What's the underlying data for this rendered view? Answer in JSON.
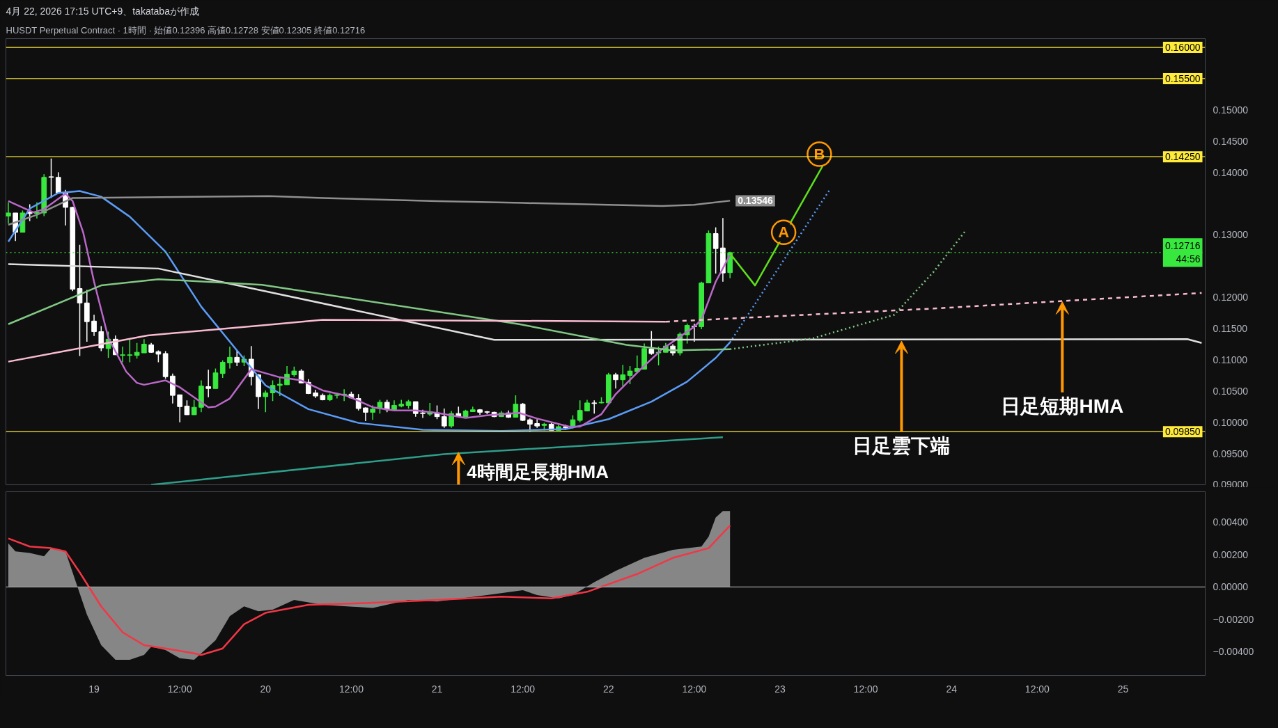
{
  "chart_data": [
    {
      "type": "candlestick",
      "title": "4月 22, 2026 17:15 UTC+9、takatabaが作成",
      "subtitle": "HUSDT Perpetual Contract · 1時間 · 始値0.12396 高値0.12728 安値0.12305 終値0.12716",
      "x": [
        "2026-04-18T12:00",
        "2026-04-18T13:00",
        "2026-04-18T14:00",
        "2026-04-18T15:00",
        "2026-04-18T16:00",
        "2026-04-18T17:00",
        "2026-04-18T18:00",
        "2026-04-18T19:00",
        "2026-04-18T20:00",
        "2026-04-18T21:00",
        "2026-04-18T22:00",
        "2026-04-18T23:00",
        "2026-04-19T00:00",
        "2026-04-19T01:00",
        "2026-04-19T02:00",
        "2026-04-19T03:00",
        "2026-04-19T04:00",
        "2026-04-19T05:00",
        "2026-04-19T06:00",
        "2026-04-19T07:00",
        "2026-04-19T08:00",
        "2026-04-19T09:00",
        "2026-04-19T10:00",
        "2026-04-19T11:00",
        "2026-04-19T12:00",
        "2026-04-19T13:00",
        "2026-04-19T14:00",
        "2026-04-19T15:00",
        "2026-04-19T16:00",
        "2026-04-19T17:00",
        "2026-04-19T18:00",
        "2026-04-19T19:00",
        "2026-04-19T20:00",
        "2026-04-19T21:00",
        "2026-04-19T22:00",
        "2026-04-19T23:00",
        "2026-04-20T00:00",
        "2026-04-20T01:00",
        "2026-04-20T02:00",
        "2026-04-20T03:00",
        "2026-04-20T04:00",
        "2026-04-20T05:00",
        "2026-04-20T06:00",
        "2026-04-20T07:00",
        "2026-04-20T08:00",
        "2026-04-20T09:00",
        "2026-04-20T10:00",
        "2026-04-20T11:00",
        "2026-04-20T12:00",
        "2026-04-20T13:00",
        "2026-04-20T14:00",
        "2026-04-20T15:00",
        "2026-04-20T16:00",
        "2026-04-20T17:00",
        "2026-04-20T18:00",
        "2026-04-20T19:00",
        "2026-04-20T20:00",
        "2026-04-20T21:00",
        "2026-04-20T22:00",
        "2026-04-20T23:00",
        "2026-04-21T00:00",
        "2026-04-21T01:00",
        "2026-04-21T02:00",
        "2026-04-21T03:00",
        "2026-04-21T04:00",
        "2026-04-21T05:00",
        "2026-04-21T06:00",
        "2026-04-21T07:00",
        "2026-04-21T08:00",
        "2026-04-21T09:00",
        "2026-04-21T10:00",
        "2026-04-21T11:00",
        "2026-04-21T12:00",
        "2026-04-21T13:00",
        "2026-04-21T14:00",
        "2026-04-21T15:00",
        "2026-04-21T16:00",
        "2026-04-21T17:00",
        "2026-04-21T18:00",
        "2026-04-21T19:00",
        "2026-04-21T20:00",
        "2026-04-21T21:00",
        "2026-04-21T22:00",
        "2026-04-21T23:00",
        "2026-04-22T00:00",
        "2026-04-22T01:00",
        "2026-04-22T02:00",
        "2026-04-22T03:00",
        "2026-04-22T04:00",
        "2026-04-22T05:00",
        "2026-04-22T06:00",
        "2026-04-22T07:00",
        "2026-04-22T08:00",
        "2026-04-22T09:00",
        "2026-04-22T10:00",
        "2026-04-22T11:00",
        "2026-04-22T12:00",
        "2026-04-22T13:00",
        "2026-04-22T14:00",
        "2026-04-22T15:00",
        "2026-04-22T16:00",
        "2026-04-22T17:00"
      ],
      "ohlc": [
        [
          0.133,
          0.1352,
          0.1318,
          0.1335
        ],
        [
          0.1335,
          0.1335,
          0.129,
          0.1304
        ],
        [
          0.1304,
          0.1339,
          0.1304,
          0.1335
        ],
        [
          0.1336,
          0.1349,
          0.1322,
          0.1334
        ],
        [
          0.1334,
          0.1352,
          0.1326,
          0.1336
        ],
        [
          0.1335,
          0.1397,
          0.133,
          0.1392
        ],
        [
          0.1393,
          0.1422,
          0.1359,
          0.1392
        ],
        [
          0.1392,
          0.14,
          0.1367,
          0.1367
        ],
        [
          0.1367,
          0.1372,
          0.1315,
          0.1344
        ],
        [
          0.1344,
          0.1345,
          0.121,
          0.1213
        ],
        [
          0.1214,
          0.1284,
          0.1106,
          0.1191
        ],
        [
          0.1191,
          0.1212,
          0.1129,
          0.1161
        ],
        [
          0.1162,
          0.1172,
          0.1138,
          0.1145
        ],
        [
          0.1145,
          0.1154,
          0.1114,
          0.1119
        ],
        [
          0.1118,
          0.1145,
          0.1103,
          0.1133
        ],
        [
          0.1133,
          0.1139,
          0.1108,
          0.1108
        ],
        [
          0.1107,
          0.1121,
          0.1096,
          0.1108
        ],
        [
          0.1107,
          0.1133,
          0.1096,
          0.1108
        ],
        [
          0.1107,
          0.1127,
          0.1102,
          0.1112
        ],
        [
          0.1111,
          0.1133,
          0.1111,
          0.1125
        ],
        [
          0.1124,
          0.1127,
          0.1111,
          0.1112
        ],
        [
          0.1113,
          0.1115,
          0.1096,
          0.1109
        ],
        [
          0.111,
          0.1114,
          0.107,
          0.1073
        ],
        [
          0.1074,
          0.1078,
          0.103,
          0.1043
        ],
        [
          0.1044,
          0.1044,
          0.1,
          0.1025
        ],
        [
          0.1026,
          0.1035,
          0.1012,
          0.1012
        ],
        [
          0.1012,
          0.1036,
          0.1012,
          0.1024
        ],
        [
          0.1024,
          0.1067,
          0.1016,
          0.1058
        ],
        [
          0.1057,
          0.1084,
          0.104,
          0.1054
        ],
        [
          0.1054,
          0.1086,
          0.1054,
          0.1079
        ],
        [
          0.1078,
          0.1099,
          0.1071,
          0.1096
        ],
        [
          0.1095,
          0.1121,
          0.1086,
          0.1104
        ],
        [
          0.1104,
          0.1115,
          0.109,
          0.1096
        ],
        [
          0.1096,
          0.1107,
          0.109,
          0.1101
        ],
        [
          0.1101,
          0.1122,
          0.1059,
          0.1073
        ],
        [
          0.1076,
          0.1077,
          0.1021,
          0.1041
        ],
        [
          0.1041,
          0.1051,
          0.1016,
          0.1047
        ],
        [
          0.1047,
          0.1067,
          0.1034,
          0.1059
        ],
        [
          0.1059,
          0.1072,
          0.1042,
          0.1061
        ],
        [
          0.106,
          0.109,
          0.106,
          0.1077
        ],
        [
          0.1076,
          0.1089,
          0.1073,
          0.1082
        ],
        [
          0.1082,
          0.1085,
          0.1063,
          0.1063
        ],
        [
          0.1064,
          0.1069,
          0.1045,
          0.1046
        ],
        [
          0.1047,
          0.1052,
          0.1039,
          0.1042
        ],
        [
          0.1043,
          0.1046,
          0.1035,
          0.1036
        ],
        [
          0.1036,
          0.1046,
          0.1034,
          0.1043
        ],
        [
          0.1043,
          0.1047,
          0.1038,
          0.1044
        ],
        [
          0.1044,
          0.1053,
          0.1034,
          0.1045
        ],
        [
          0.1045,
          0.1049,
          0.1038,
          0.1039
        ],
        [
          0.1038,
          0.1045,
          0.1019,
          0.1022
        ],
        [
          0.1023,
          0.1024,
          0.1002,
          0.1016
        ],
        [
          0.1016,
          0.1027,
          0.1004,
          0.1021
        ],
        [
          0.1022,
          0.1036,
          0.1014,
          0.1032
        ],
        [
          0.1032,
          0.1036,
          0.1016,
          0.102
        ],
        [
          0.102,
          0.1035,
          0.102,
          0.1027
        ],
        [
          0.1026,
          0.1036,
          0.1024,
          0.1029
        ],
        [
          0.1027,
          0.1036,
          0.1022,
          0.1033
        ],
        [
          0.1033,
          0.1033,
          0.1009,
          0.1014
        ],
        [
          0.1015,
          0.102,
          0.1007,
          0.1014
        ],
        [
          0.1013,
          0.1031,
          0.101,
          0.1017
        ],
        [
          0.1015,
          0.1027,
          0.1005,
          0.1009
        ],
        [
          0.1009,
          0.1022,
          0.0991,
          0.0994
        ],
        [
          0.0994,
          0.1018,
          0.0991,
          0.1014
        ],
        [
          0.1014,
          0.1025,
          0.1009,
          0.1009
        ],
        [
          0.1009,
          0.102,
          0.1009,
          0.1018
        ],
        [
          0.1017,
          0.1025,
          0.1017,
          0.102
        ],
        [
          0.102,
          0.1021,
          0.1012,
          0.1016
        ],
        [
          0.1017,
          0.1018,
          0.1013,
          0.1016
        ],
        [
          0.1016,
          0.1017,
          0.1008,
          0.1009
        ],
        [
          0.1009,
          0.1018,
          0.1009,
          0.1015
        ],
        [
          0.1015,
          0.1019,
          0.1007,
          0.1008
        ],
        [
          0.1008,
          0.1043,
          0.1008,
          0.1029
        ],
        [
          0.1029,
          0.1031,
          0.1002,
          0.1003
        ],
        [
          0.1004,
          0.1006,
          0.0985,
          0.0997
        ],
        [
          0.0998,
          0.1005,
          0.0991,
          0.0994
        ],
        [
          0.0995,
          0.0999,
          0.0987,
          0.0997
        ],
        [
          0.0997,
          0.0999,
          0.0987,
          0.0987
        ],
        [
          0.0987,
          0.0996,
          0.0987,
          0.0993
        ],
        [
          0.0993,
          0.0996,
          0.0988,
          0.0991
        ],
        [
          0.0993,
          0.1011,
          0.099,
          0.1004
        ],
        [
          0.1003,
          0.1035,
          0.1,
          0.1019
        ],
        [
          0.1018,
          0.1036,
          0.1018,
          0.1031
        ],
        [
          0.1031,
          0.1035,
          0.1014,
          0.103
        ],
        [
          0.1031,
          0.104,
          0.103,
          0.1032
        ],
        [
          0.1031,
          0.1079,
          0.1031,
          0.1076
        ],
        [
          0.1076,
          0.1079,
          0.1054,
          0.1068
        ],
        [
          0.1068,
          0.1092,
          0.1058,
          0.1076
        ],
        [
          0.1075,
          0.109,
          0.1061,
          0.1082
        ],
        [
          0.1081,
          0.1107,
          0.1081,
          0.1086
        ],
        [
          0.1085,
          0.1126,
          0.1085,
          0.1118
        ],
        [
          0.1117,
          0.1146,
          0.1108,
          0.111
        ],
        [
          0.1111,
          0.1121,
          0.1091,
          0.1112
        ],
        [
          0.1112,
          0.1127,
          0.1112,
          0.1122
        ],
        [
          0.1122,
          0.1125,
          0.1107,
          0.1111
        ],
        [
          0.1111,
          0.1144,
          0.1107,
          0.1141
        ],
        [
          0.114,
          0.1158,
          0.1126,
          0.1155
        ],
        [
          0.1154,
          0.1158,
          0.1129,
          0.1153
        ],
        [
          0.1153,
          0.1225,
          0.1149,
          0.1223
        ],
        [
          0.1223,
          0.1307,
          0.1223,
          0.1302
        ],
        [
          0.1302,
          0.1312,
          0.1238,
          0.1278
        ],
        [
          0.1279,
          0.1327,
          0.1225,
          0.1239
        ],
        [
          0.12396,
          0.12728,
          0.12305,
          0.12716
        ]
      ],
      "colors": [
        "#39e83f",
        "#ffffff",
        "#39e83f",
        "#ffffff",
        "#39e83f",
        "#39e83f",
        "#ffffff",
        "#ffffff",
        "#ffffff",
        "#ffffff",
        "#ffffff",
        "#ffffff",
        "#ffffff",
        "#ffffff",
        "#39e83f",
        "#ffffff",
        "#39e83f",
        "#39e83f",
        "#39e83f",
        "#39e83f",
        "#ffffff",
        "#ffffff",
        "#ffffff",
        "#ffffff",
        "#ffffff",
        "#ffffff",
        "#39e83f",
        "#39e83f",
        "#ffffff",
        "#39e83f",
        "#39e83f",
        "#39e83f",
        "#ffffff",
        "#39e83f",
        "#ffffff",
        "#ffffff",
        "#39e83f",
        "#39e83f",
        "#39e83f",
        "#39e83f",
        "#39e83f",
        "#ffffff",
        "#ffffff",
        "#ffffff",
        "#ffffff",
        "#39e83f",
        "#39e83f",
        "#39e83f",
        "#ffffff",
        "#ffffff",
        "#ffffff",
        "#39e83f",
        "#39e83f",
        "#ffffff",
        "#39e83f",
        "#39e83f",
        "#39e83f",
        "#ffffff",
        "#ffffff",
        "#39e83f",
        "#ffffff",
        "#ffffff",
        "#39e83f",
        "#ffffff",
        "#39e83f",
        "#39e83f",
        "#ffffff",
        "#ffffff",
        "#ffffff",
        "#39e83f",
        "#ffffff",
        "#39e83f",
        "#ffffff",
        "#ffffff",
        "#ffffff",
        "#39e83f",
        "#ffffff",
        "#39e83f",
        "#ffffff",
        "#39e83f",
        "#39e83f",
        "#39e83f",
        "#ffffff",
        "#39e83f",
        "#39e83f",
        "#ffffff",
        "#39e83f",
        "#39e83f",
        "#39e83f",
        "#39e83f",
        "#ffffff",
        "#39e83f",
        "#39e83f",
        "#ffffff",
        "#39e83f",
        "#39e83f",
        "#ffffff",
        "#39e83f",
        "#39e83f",
        "#ffffff",
        "#ffffff",
        "#39e83f"
      ],
      "series": [
        {
          "type": "line",
          "color": "#5b9cf6",
          "x": [
            "2026-04-18T12:00",
            "2026-04-18T15:00",
            "2026-04-18T19:00",
            "2026-04-18T22:00",
            "2026-04-19T01:00",
            "2026-04-19T05:00",
            "2026-04-19T10:00",
            "2026-04-19T15:00",
            "2026-04-19T20:00",
            "2026-04-20T00:00",
            "2026-04-20T06:00",
            "2026-04-20T13:00",
            "2026-04-20T22:00",
            "2026-04-21T09:00",
            "2026-04-21T18:00",
            "2026-04-22T00:00",
            "2026-04-22T06:00",
            "2026-04-22T11:00",
            "2026-04-22T15:00",
            "2026-04-22T17:00"
          ],
          "values": [
            0.1289,
            0.1342,
            0.1367,
            0.137,
            0.1361,
            0.1329,
            0.1273,
            0.1185,
            0.1115,
            0.1059,
            0.1021,
            0.0999,
            0.0988,
            0.0986,
            0.0989,
            0.1005,
            0.1033,
            0.1065,
            0.1103,
            0.1128
          ]
        },
        {
          "type": "line",
          "color": "#5b9cf6",
          "line_style": "dotted",
          "x": [
            "2026-04-22T17:00",
            "2026-04-23T07:00"
          ],
          "values": [
            0.1128,
            0.1373
          ]
        },
        {
          "type": "line",
          "color": "#ba68c8",
          "x": [
            "2026-04-18T12:00",
            "2026-04-18T15:30",
            "2026-04-18T17:00",
            "2026-04-18T20:00",
            "2026-04-18T21:00",
            "2026-04-18T22:30",
            "2026-04-19T00:00",
            "2026-04-19T02:00",
            "2026-04-19T04:30",
            "2026-04-19T06:00",
            "2026-04-19T07:00",
            "2026-04-19T10:00",
            "2026-04-19T12:00",
            "2026-04-19T16:00",
            "2026-04-19T17:00",
            "2026-04-19T19:00",
            "2026-04-19T22:00",
            "2026-04-20T02:00",
            "2026-04-20T05:00",
            "2026-04-20T08:00",
            "2026-04-20T11:30",
            "2026-04-20T15:00",
            "2026-04-20T18:00",
            "2026-04-20T21:00",
            "2026-04-21T00:00",
            "2026-04-21T04:00",
            "2026-04-21T07:00",
            "2026-04-21T11:30",
            "2026-04-21T14:00",
            "2026-04-21T18:30",
            "2026-04-21T20:00",
            "2026-04-21T23:00",
            "2026-04-22T01:00",
            "2026-04-22T04:30",
            "2026-04-22T07:30",
            "2026-04-22T12:00",
            "2026-04-22T13:00",
            "2026-04-22T15:00",
            "2026-04-22T17:00"
          ],
          "values": [
            0.1354,
            0.1336,
            0.1341,
            0.1366,
            0.1354,
            0.1303,
            0.1225,
            0.1135,
            0.1081,
            0.1063,
            0.106,
            0.1067,
            0.1056,
            0.1024,
            0.1025,
            0.1038,
            0.1085,
            0.1072,
            0.1067,
            0.1051,
            0.1042,
            0.1024,
            0.1019,
            0.1019,
            0.1015,
            0.1007,
            0.1011,
            0.1015,
            0.1006,
            0.0993,
            0.0993,
            0.1013,
            0.1045,
            0.1085,
            0.1117,
            0.1153,
            0.1164,
            0.1225,
            0.1268
          ]
        },
        {
          "type": "line",
          "color": "#8f8f8f",
          "x": [
            "2026-04-18T12:00",
            "2026-04-18T16:00",
            "2026-04-18T21:00",
            "2026-04-20T00:30",
            "2026-04-20T08:00",
            "2026-04-21T00:00",
            "2026-04-21T12:00",
            "2026-04-22T07:30",
            "2026-04-22T12:00",
            "2026-04-22T17:00"
          ],
          "values": [
            0.1316,
            0.1332,
            0.1359,
            0.1362,
            0.1359,
            0.1354,
            0.1351,
            0.1346,
            0.1348,
            0.13546
          ],
          "value_labels": [
            null,
            null,
            null,
            null,
            null,
            null,
            null,
            null,
            null,
            "0.13546"
          ]
        },
        {
          "type": "line",
          "color": "#e0e0e0",
          "x": [
            "2026-04-18T12:00",
            "2026-04-19T09:00",
            "2026-04-21T08:00",
            "2026-04-25T09:00",
            "2026-04-25T11:00"
          ],
          "values": [
            0.1253,
            0.1246,
            0.1132,
            0.1133,
            0.1127
          ]
        },
        {
          "type": "line",
          "color": "#81c784",
          "x": [
            "2026-04-18T12:00",
            "2026-04-19T01:00",
            "2026-04-19T09:00",
            "2026-04-19T23:30",
            "2026-04-21T11:30",
            "2026-04-22T02:30",
            "2026-04-22T09:00",
            "2026-04-22T17:00"
          ],
          "values": [
            0.1157,
            0.1219,
            0.1229,
            0.122,
            0.1157,
            0.1124,
            0.1115,
            0.1117
          ]
        },
        {
          "type": "line",
          "color": "#81c784",
          "line_style": "dotted",
          "x": [
            "2026-04-22T17:00",
            "2026-04-23T04:30",
            "2026-04-23T16:00",
            "2026-04-23T21:30",
            "2026-04-24T02:00"
          ],
          "values": [
            0.1117,
            0.1134,
            0.1172,
            0.1241,
            0.1307
          ]
        },
        {
          "type": "line",
          "color": "#f8bbd0",
          "x": [
            "2026-04-18T12:00",
            "2026-04-19T07:30",
            "2026-04-19T23:30",
            "2026-04-20T08:00",
            "2026-04-22T08:00"
          ],
          "values": [
            0.1097,
            0.1139,
            0.1155,
            0.1164,
            0.1161
          ]
        },
        {
          "type": "line",
          "color": "#f8bbd0",
          "line_style": "dashed",
          "x": [
            "2026-04-22T08:00",
            "2026-04-23T21:30",
            "2026-04-25T11:00"
          ],
          "values": [
            0.1161,
            0.1182,
            0.1207
          ]
        },
        {
          "type": "line",
          "color": "#2e9e8a",
          "x": [
            "2026-04-19T08:00",
            "2026-04-21T01:00",
            "2026-04-22T16:00"
          ],
          "values": [
            0.09,
            0.0949,
            0.0976
          ]
        },
        {
          "type": "line",
          "color": "#5ee01a",
          "x": [
            "2026-04-22T17:00",
            "2026-04-22T20:30",
            "2026-04-23T06:00"
          ],
          "values": [
            0.127,
            0.1219,
            0.1411
          ]
        },
        {
          "type": "scatter",
          "color": "#ff9800",
          "marker": "circle",
          "x": [
            "2026-04-23T00:30",
            "2026-04-23T05:30"
          ],
          "values": [
            0.1304,
            0.1429
          ],
          "value_labels": [
            "A",
            "B"
          ]
        }
      ],
      "xlim": [
        "2026-04-18T11:40",
        "2026-04-25T11:30"
      ],
      "ylim": [
        0.09,
        0.1614
      ],
      "yticks": [
        {
          "value": 0.09,
          "label": "0.09000"
        },
        {
          "value": 0.095,
          "label": "0.09500"
        },
        {
          "value": 0.1,
          "label": "0.10000"
        },
        {
          "value": 0.105,
          "label": "0.10500"
        },
        {
          "value": 0.11,
          "label": "0.11000"
        },
        {
          "value": 0.115,
          "label": "0.11500"
        },
        {
          "value": 0.12,
          "label": "0.12000"
        },
        {
          "value": 0.13,
          "label": "0.13000"
        },
        {
          "value": 0.14,
          "label": "0.14000"
        },
        {
          "value": 0.145,
          "label": "0.14500"
        },
        {
          "value": 0.15,
          "label": "0.15000"
        }
      ],
      "tick_labels": "y",
      "ref_lines": [
        {
          "axis": "y",
          "value": 0.16,
          "label": "0.16000",
          "color": "#ffeb3b"
        },
        {
          "axis": "y",
          "value": 0.155,
          "label": "0.15500",
          "color": "#ffeb3b"
        },
        {
          "axis": "y",
          "value": 0.1425,
          "label": "0.14250",
          "color": "#ffeb3b"
        },
        {
          "axis": "y",
          "value": 0.0985,
          "label": "0.09850",
          "color": "#ffeb3b"
        },
        {
          "axis": "y",
          "value": 0.12716,
          "label": "0.12716\n44:56",
          "color": "#39e83f",
          "line_style": "dotted"
        }
      ],
      "annotations": [
        {
          "text": "4時間足長期HMA",
          "x": "2026-04-21T03:00",
          "y": 0.0952
        },
        {
          "text": "日足雲下端",
          "x": "2026-04-23T17:00",
          "y": 0.113
        },
        {
          "text": "日足短期HMA",
          "x": "2026-04-24T15:30",
          "y": 0.1193
        }
      ]
    },
    {
      "type": "area",
      "series": [
        {
          "color": "#868686",
          "x": [
            "2026-04-18T12:00",
            "2026-04-18T13:00",
            "2026-04-18T15:00",
            "2026-04-18T17:00",
            "2026-04-18T18:00",
            "2026-04-18T20:00",
            "2026-04-18T21:00",
            "2026-04-18T22:00",
            "2026-04-18T23:00",
            "2026-04-19T01:00",
            "2026-04-19T03:00",
            "2026-04-19T05:00",
            "2026-04-19T07:00",
            "2026-04-19T08:00",
            "2026-04-19T10:00",
            "2026-04-19T12:00",
            "2026-04-19T14:00",
            "2026-04-19T15:00",
            "2026-04-19T17:00",
            "2026-04-19T19:00",
            "2026-04-19T21:00",
            "2026-04-19T23:00",
            "2026-04-20T01:00",
            "2026-04-20T04:00",
            "2026-04-20T08:00",
            "2026-04-20T15:00",
            "2026-04-20T20:00",
            "2026-04-21T00:00",
            "2026-04-21T07:00",
            "2026-04-21T12:00",
            "2026-04-21T14:00",
            "2026-04-21T17:00",
            "2026-04-21T19:00",
            "2026-04-21T22:00",
            "2026-04-22T01:00",
            "2026-04-22T05:00",
            "2026-04-22T09:00",
            "2026-04-22T13:00",
            "2026-04-22T14:00",
            "2026-04-22T15:00",
            "2026-04-22T16:00",
            "2026-04-22T17:00"
          ],
          "values": [
            0.0027,
            0.0022,
            0.0021,
            0.0019,
            0.0024,
            0.0022,
            0.0009,
            -0.0004,
            -0.0017,
            -0.0036,
            -0.0045,
            -0.0045,
            -0.0042,
            -0.0037,
            -0.0039,
            -0.0044,
            -0.0045,
            -0.0041,
            -0.0033,
            -0.0018,
            -0.0012,
            -0.0015,
            -0.0014,
            -0.0008,
            -0.0011,
            -0.0013,
            -0.0008,
            -0.0009,
            -0.0005,
            -0.0002,
            -0.0005,
            -0.0007,
            -0.0005,
            0.0003,
            0.001,
            0.0018,
            0.0023,
            0.0025,
            0.0031,
            0.0043,
            0.0047,
            0.0047
          ]
        },
        {
          "type": "line",
          "color": "#f23645",
          "x": [
            "2026-04-18T12:00",
            "2026-04-18T15:00",
            "2026-04-18T18:00",
            "2026-04-18T20:00",
            "2026-04-18T22:00",
            "2026-04-19T01:00",
            "2026-04-19T04:00",
            "2026-04-19T07:00",
            "2026-04-19T10:00",
            "2026-04-19T14:00",
            "2026-04-19T15:00",
            "2026-04-19T18:00",
            "2026-04-19T21:00",
            "2026-04-20T00:00",
            "2026-04-20T06:00",
            "2026-04-20T14:00",
            "2026-04-21T00:00",
            "2026-04-21T09:00",
            "2026-04-21T16:00",
            "2026-04-21T21:00",
            "2026-04-22T04:00",
            "2026-04-22T09:00",
            "2026-04-22T14:00",
            "2026-04-22T17:00"
          ],
          "values": [
            0.003,
            0.0025,
            0.0024,
            0.0022,
            0.0009,
            -0.0012,
            -0.0028,
            -0.0036,
            -0.0038,
            -0.0041,
            -0.0042,
            -0.0038,
            -0.0023,
            -0.0016,
            -0.0011,
            -0.001,
            -0.0008,
            -0.0006,
            -0.0007,
            -0.0003,
            0.0008,
            0.0018,
            0.0024,
            0.0038
          ]
        }
      ],
      "xlim": [
        "2026-04-18T11:40",
        "2026-04-25T11:30"
      ],
      "ylim": [
        -0.00547,
        0.00589
      ],
      "xticks": [
        {
          "value": "2026-04-19T00:00",
          "label": "19"
        },
        {
          "value": "2026-04-19T12:00",
          "label": "12:00"
        },
        {
          "value": "2026-04-20T00:00",
          "label": "20"
        },
        {
          "value": "2026-04-20T12:00",
          "label": "12:00"
        },
        {
          "value": "2026-04-21T00:00",
          "label": "21"
        },
        {
          "value": "2026-04-21T12:00",
          "label": "12:00"
        },
        {
          "value": "2026-04-22T00:00",
          "label": "22"
        },
        {
          "value": "2026-04-22T12:00",
          "label": "12:00"
        },
        {
          "value": "2026-04-23T00:00",
          "label": "23"
        },
        {
          "value": "2026-04-23T12:00",
          "label": "12:00"
        },
        {
          "value": "2026-04-24T00:00",
          "label": "24"
        },
        {
          "value": "2026-04-24T12:00",
          "label": "12:00"
        },
        {
          "value": "2026-04-25T00:00",
          "label": "25"
        }
      ],
      "yticks": [
        {
          "value": 0.004,
          "label": "0.00400"
        },
        {
          "value": 0.002,
          "label": "0.00200"
        },
        {
          "value": 0,
          "label": "0.00000"
        },
        {
          "value": -0.002,
          "label": "−0.00200"
        },
        {
          "value": -0.004,
          "label": "−0.00400"
        }
      ],
      "ref_lines": [
        {
          "axis": "y",
          "value": 0,
          "color": "#9e9e9e"
        }
      ]
    }
  ]
}
